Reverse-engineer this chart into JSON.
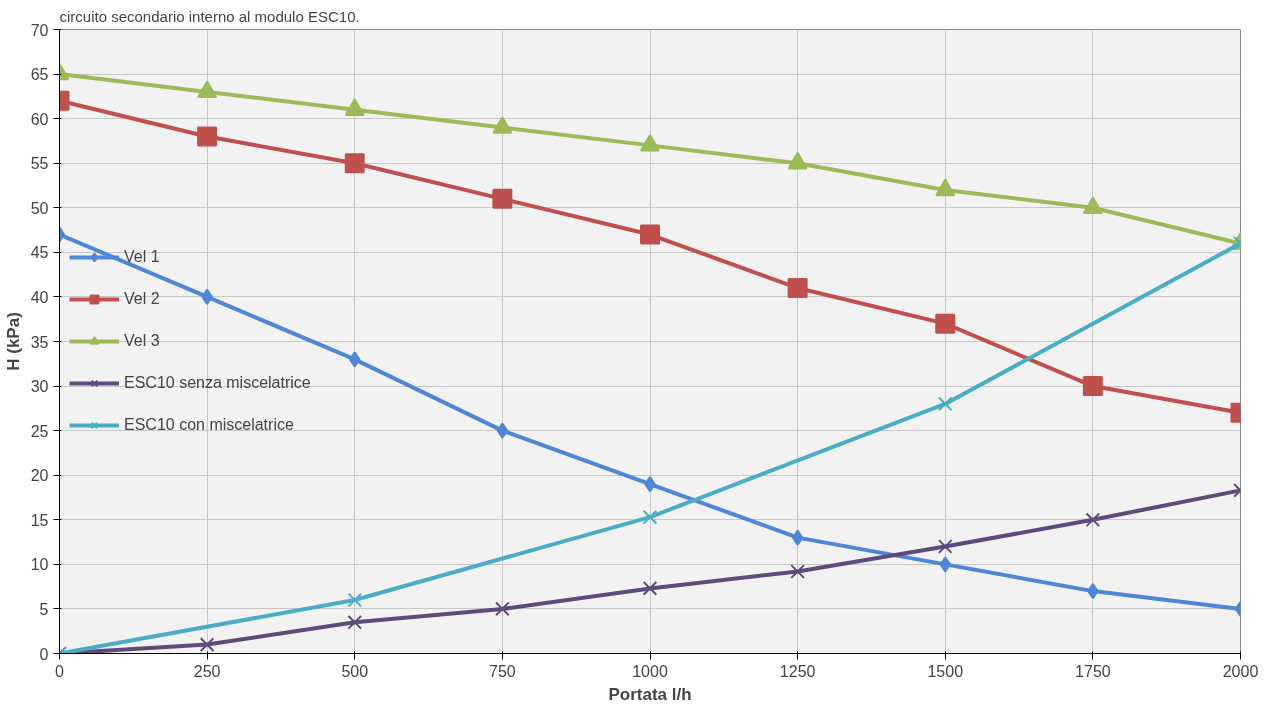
{
  "chart_data": {
    "type": "line",
    "annotations": [
      "circuito secondario interno al modulo ESC10."
    ],
    "xlabel": "Portata l/h",
    "ylabel": "H (kPa)",
    "x": [
      0,
      250,
      500,
      750,
      1000,
      1250,
      1500,
      1750,
      2000
    ],
    "series": [
      {
        "name": "Vel 1",
        "color": "#4f86d6",
        "marker": "diamond",
        "values": [
          47,
          40,
          33,
          25,
          19,
          13,
          10,
          7,
          5
        ]
      },
      {
        "name": "Vel 2",
        "color": "#c0504d",
        "marker": "square",
        "values": [
          62,
          58,
          55,
          51,
          47,
          41,
          37,
          30,
          27
        ]
      },
      {
        "name": "Vel 3",
        "color": "#9bbb59",
        "marker": "triangle",
        "values": [
          65,
          63,
          61,
          59,
          57,
          55,
          52,
          50,
          46
        ]
      },
      {
        "name": "ESC10 senza miscelatrice",
        "color": "#604a7b",
        "marker": "cross",
        "values": [
          0,
          1,
          3.5,
          5,
          7.3,
          9.2,
          12,
          15,
          18.3
        ]
      },
      {
        "name": "ESC10 con miscelatrice",
        "color": "#4bacc6",
        "marker": "cross",
        "x": [
          0,
          500,
          1000,
          1500,
          2000
        ],
        "values": [
          0,
          6,
          15.3,
          28,
          46
        ]
      }
    ],
    "xlim": [
      0,
      2000
    ],
    "ylim": [
      0,
      70
    ],
    "xticks": [
      0,
      250,
      500,
      750,
      1000,
      1250,
      1500,
      1750,
      2000
    ],
    "yticks": [
      0,
      5,
      10,
      15,
      20,
      25,
      30,
      35,
      40,
      45,
      50,
      55,
      60,
      65,
      70
    ],
    "grid": true,
    "legend": "left",
    "line_style": "solid"
  }
}
